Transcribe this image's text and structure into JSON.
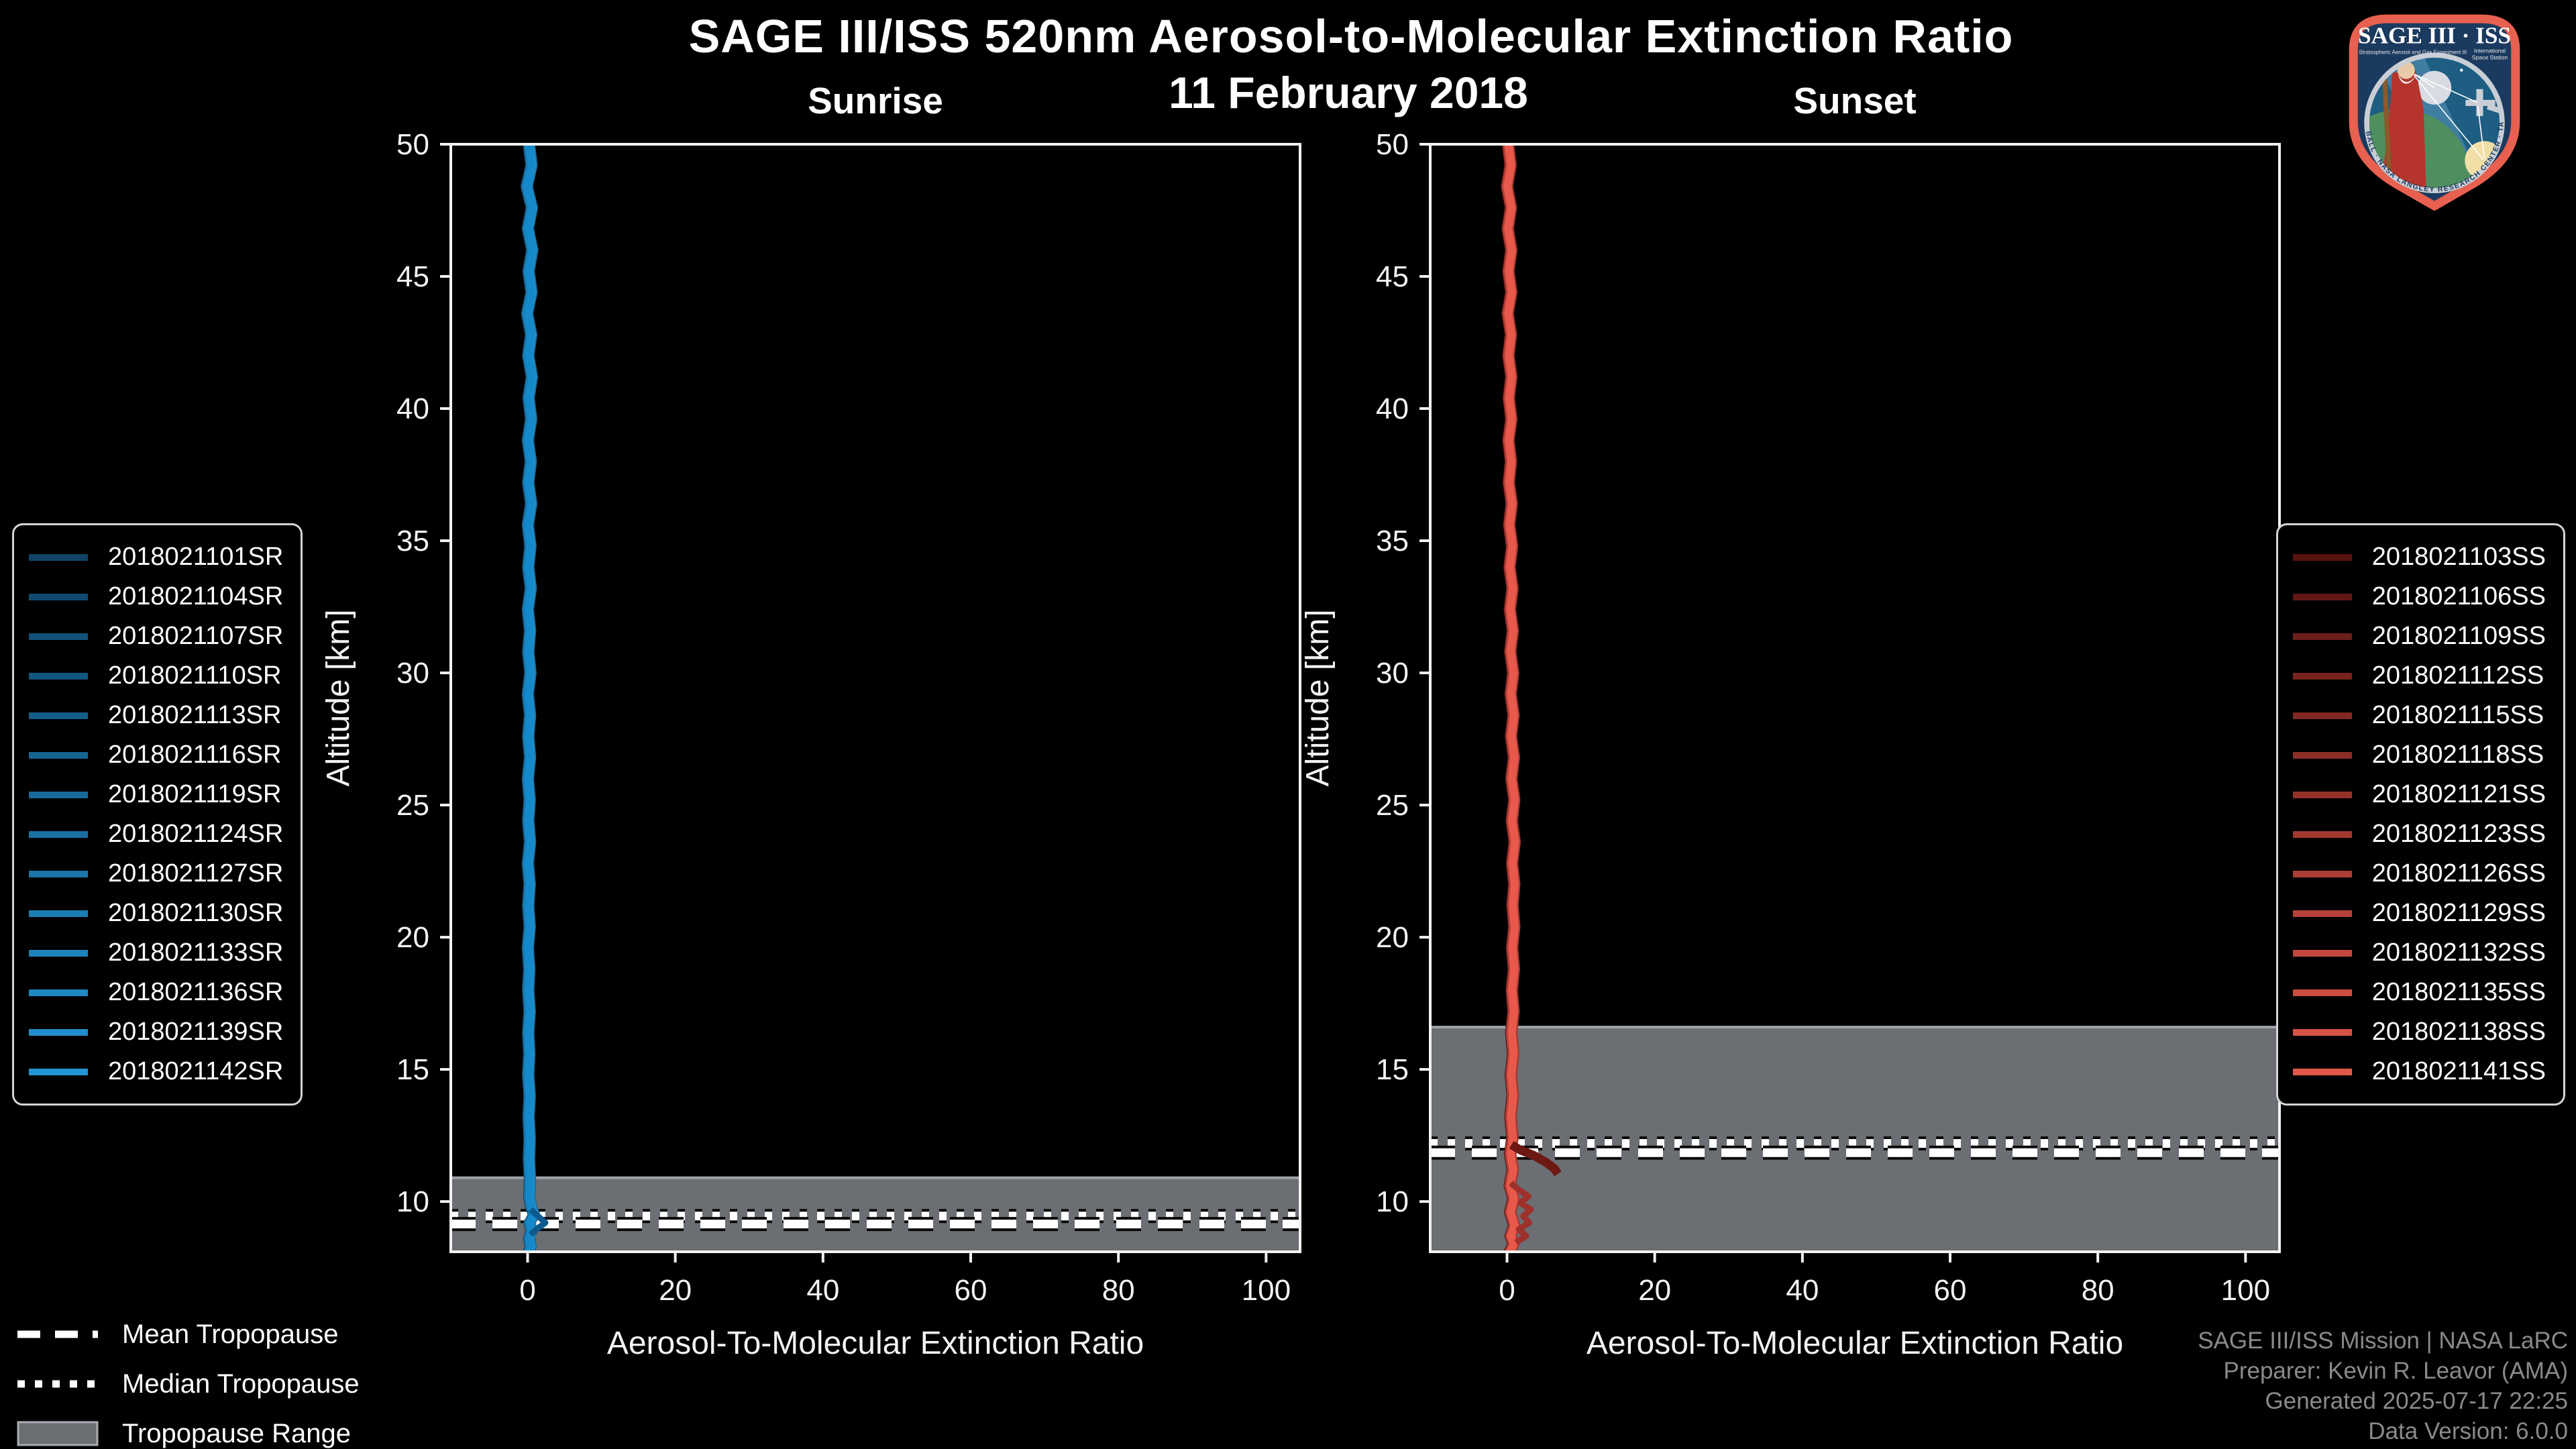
{
  "title": "SAGE III/ISS 520nm Aerosol-to-Molecular Extinction Ratio",
  "date": "11 February 2018",
  "colors": {
    "background": "#000000",
    "axis_text": "#F2F2F2",
    "band_fill": "#6B6E73",
    "band_edge": "#9FA3A8",
    "tropopause_line": "#FFFFFF",
    "legend_border": "#D4D4D4",
    "credits_text": "#8A8A8A"
  },
  "tropopause_legend": [
    {
      "label": "Mean Tropopause",
      "style": "dashed"
    },
    {
      "label": "Median Tropopause",
      "style": "dotted"
    },
    {
      "label": "Tropopause Range",
      "style": "box"
    }
  ],
  "credits": {
    "lines": [
      "SAGE III/ISS Mission | NASA LaRC",
      "Preparer: Kevin R. Leavor (AMA)",
      "Generated 2025-07-17 22:25",
      "Data Version: 6.0.0"
    ]
  },
  "logo": {
    "title": "SAGE III · ISS",
    "sub_left": "Stratospheric Aerosol and Gas Experiment III",
    "sub_right_1": "International",
    "sub_right_2": "Space Station",
    "ring": "BALL · NASA LANGLEY RESEARCH CENTER · TAS-I · ESA"
  },
  "chart_data": [
    {
      "type": "line",
      "panel": "Sunrise",
      "xlabel": "Aerosol-To-Molecular Extinction Ratio",
      "ylabel": "Altitude [km]",
      "xlim": [
        -10.4,
        104.6
      ],
      "ylim": [
        8.1,
        50
      ],
      "xticks": [
        0,
        20,
        40,
        60,
        80,
        100
      ],
      "yticks": [
        10,
        15,
        20,
        25,
        30,
        35,
        40,
        45,
        50
      ],
      "grid": false,
      "legend_position": "left",
      "tropopause": {
        "mean_km": 9.15,
        "median_km": 9.45,
        "range_top_km": 10.9,
        "range_bottom_km": 8.1
      },
      "front_color": "#1589CA",
      "front_width": 11,
      "series": [
        {
          "name": "2018021101SR",
          "color": "#0F4468"
        },
        {
          "name": "2018021104SR",
          "color": "#104A70"
        },
        {
          "name": "2018021107SR",
          "color": "#125178"
        },
        {
          "name": "2018021110SR",
          "color": "#135781"
        },
        {
          "name": "2018021113SR",
          "color": "#155D89"
        },
        {
          "name": "2018021116SR",
          "color": "#166491"
        },
        {
          "name": "2018021119SR",
          "color": "#176A99"
        },
        {
          "name": "2018021124SR",
          "color": "#1970A2"
        },
        {
          "name": "2018021127SR",
          "color": "#1A76AA"
        },
        {
          "name": "2018021130SR",
          "color": "#1B7DB2"
        },
        {
          "name": "2018021133SR",
          "color": "#1D83BA"
        },
        {
          "name": "2018021136SR",
          "color": "#1E89C3"
        },
        {
          "name": "2018021139SR",
          "color": "#208FCB"
        },
        {
          "name": "2018021142SR",
          "color": "#2196D3"
        }
      ],
      "offsets": [
        -0.55,
        -0.4,
        -0.25,
        -0.1,
        0.05,
        0.2,
        0.35,
        0.5,
        -0.45,
        -0.3,
        -0.15,
        0.0,
        0.15,
        0.3
      ],
      "profile": [
        [
          50,
          0.2
        ],
        [
          49.2,
          0.55
        ],
        [
          48.4,
          -0.1
        ],
        [
          47.6,
          0.6
        ],
        [
          46.8,
          0.05
        ],
        [
          46,
          0.65
        ],
        [
          45.2,
          0.15
        ],
        [
          44.4,
          0.55
        ],
        [
          43.6,
          -0.05
        ],
        [
          42.8,
          0.5
        ],
        [
          42,
          0.1
        ],
        [
          41.2,
          0.6
        ],
        [
          40.4,
          0.15
        ],
        [
          39.6,
          0.5
        ],
        [
          38.8,
          0.05
        ],
        [
          38,
          0.45
        ],
        [
          37.2,
          0.1
        ],
        [
          36.4,
          0.5
        ],
        [
          35.6,
          0.05
        ],
        [
          34.8,
          0.4
        ],
        [
          34,
          0.1
        ],
        [
          33.2,
          0.45
        ],
        [
          32.4,
          0.05
        ],
        [
          31.6,
          0.35
        ],
        [
          30.8,
          0.1
        ],
        [
          30,
          0.4
        ],
        [
          29.2,
          0.05
        ],
        [
          28.4,
          0.35
        ],
        [
          27.6,
          0.1
        ],
        [
          26.8,
          0.35
        ],
        [
          26,
          0.05
        ],
        [
          25.2,
          0.3
        ],
        [
          24.4,
          0.1
        ],
        [
          23.6,
          0.35
        ],
        [
          22.8,
          0.05
        ],
        [
          22,
          0.3
        ],
        [
          21.2,
          0.1
        ],
        [
          20.4,
          0.3
        ],
        [
          19.6,
          0.05
        ],
        [
          18.8,
          0.25
        ],
        [
          18,
          0.1
        ],
        [
          17.2,
          0.3
        ],
        [
          16.4,
          0.1
        ],
        [
          15.6,
          0.25
        ],
        [
          14.8,
          0.1
        ],
        [
          14,
          0.3
        ],
        [
          13.2,
          0.15
        ],
        [
          12.4,
          0.3
        ],
        [
          11.6,
          0.2
        ],
        [
          10.8,
          0.35
        ],
        [
          10.2,
          0.25
        ],
        [
          9.8,
          0.5
        ],
        [
          9.5,
          0.9
        ],
        [
          9.2,
          0.3
        ],
        [
          8.9,
          0.55
        ],
        [
          8.6,
          0.25
        ],
        [
          8.3,
          0.45
        ],
        [
          8.1,
          0.2
        ]
      ],
      "branches": [
        {
          "color": "#0E5A8C",
          "width": 9,
          "points": [
            [
              9.7,
              0.4
            ],
            [
              9.45,
              1.4
            ],
            [
              9.2,
              2.4
            ],
            [
              8.95,
              1.2
            ],
            [
              8.75,
              0.4
            ]
          ]
        }
      ]
    },
    {
      "type": "line",
      "panel": "Sunset",
      "xlabel": "Aerosol-To-Molecular Extinction Ratio",
      "ylabel": "Altitude [km]",
      "xlim": [
        -10.4,
        104.6
      ],
      "ylim": [
        8.1,
        50
      ],
      "xticks": [
        0,
        20,
        40,
        60,
        80,
        100
      ],
      "yticks": [
        10,
        15,
        20,
        25,
        30,
        35,
        40,
        45,
        50
      ],
      "grid": false,
      "legend_position": "right",
      "tropopause": {
        "mean_km": 11.85,
        "median_km": 12.2,
        "range_top_km": 16.6,
        "range_bottom_km": 8.1
      },
      "front_color": "#E8594C",
      "front_width": 11,
      "series": [
        {
          "name": "2018021103SS",
          "color": "#571310"
        },
        {
          "name": "2018021106SS",
          "color": "#621815"
        },
        {
          "name": "2018021109SS",
          "color": "#6C1E19"
        },
        {
          "name": "2018021112SS",
          "color": "#77231E"
        },
        {
          "name": "2018021115SS",
          "color": "#822822"
        },
        {
          "name": "2018021118SS",
          "color": "#8D2D27"
        },
        {
          "name": "2018021121SS",
          "color": "#97322B"
        },
        {
          "name": "2018021123SS",
          "color": "#A23830"
        },
        {
          "name": "2018021126SS",
          "color": "#AD3D34"
        },
        {
          "name": "2018021129SS",
          "color": "#B74239"
        },
        {
          "name": "2018021132SS",
          "color": "#C2473E"
        },
        {
          "name": "2018021135SS",
          "color": "#CD4D42"
        },
        {
          "name": "2018021138SS",
          "color": "#D75247"
        },
        {
          "name": "2018021141SS",
          "color": "#E2574B"
        }
      ],
      "offsets": [
        -0.55,
        -0.4,
        -0.25,
        -0.1,
        0.05,
        0.2,
        0.35,
        0.5,
        -0.45,
        -0.3,
        -0.15,
        0.0,
        0.15,
        0.3
      ],
      "profile": [
        [
          50,
          0.15
        ],
        [
          49.2,
          0.5
        ],
        [
          48.4,
          0.0
        ],
        [
          47.6,
          0.55
        ],
        [
          46.8,
          0.1
        ],
        [
          46,
          0.6
        ],
        [
          45.2,
          0.2
        ],
        [
          44.4,
          0.6
        ],
        [
          43.6,
          0.1
        ],
        [
          42.8,
          0.55
        ],
        [
          42,
          0.2
        ],
        [
          41.2,
          0.6
        ],
        [
          40.4,
          0.25
        ],
        [
          39.6,
          0.6
        ],
        [
          38.8,
          0.2
        ],
        [
          38,
          0.55
        ],
        [
          37.2,
          0.25
        ],
        [
          36.4,
          0.65
        ],
        [
          35.6,
          0.3
        ],
        [
          34.8,
          0.7
        ],
        [
          34,
          0.35
        ],
        [
          33.2,
          0.75
        ],
        [
          32.4,
          0.4
        ],
        [
          31.6,
          0.8
        ],
        [
          30.8,
          0.45
        ],
        [
          30,
          0.85
        ],
        [
          29.2,
          0.5
        ],
        [
          28.4,
          0.9
        ],
        [
          27.6,
          0.55
        ],
        [
          26.8,
          0.95
        ],
        [
          26,
          0.6
        ],
        [
          25.2,
          1.0
        ],
        [
          24.4,
          0.65
        ],
        [
          23.6,
          1.05
        ],
        [
          22.8,
          0.7
        ],
        [
          22,
          1.0
        ],
        [
          21.2,
          0.75
        ],
        [
          20.4,
          1.0
        ],
        [
          19.6,
          0.7
        ],
        [
          18.8,
          0.95
        ],
        [
          18,
          0.65
        ],
        [
          17.2,
          0.9
        ],
        [
          16.4,
          0.6
        ],
        [
          15.6,
          0.85
        ],
        [
          14.8,
          0.55
        ],
        [
          14,
          0.8
        ],
        [
          13.2,
          0.5
        ],
        [
          12.4,
          0.75
        ],
        [
          11.8,
          0.45
        ],
        [
          11.2,
          0.8
        ],
        [
          10.6,
          0.4
        ],
        [
          10.1,
          0.9
        ],
        [
          9.6,
          0.45
        ],
        [
          9.1,
          1.0
        ],
        [
          8.7,
          0.5
        ],
        [
          8.4,
          0.9
        ],
        [
          8.1,
          0.4
        ]
      ],
      "branches": [
        {
          "color": "#6E1813",
          "width": 13,
          "points": [
            [
              12.15,
              0.6
            ],
            [
              11.95,
              1.8
            ],
            [
              11.75,
              3.6
            ],
            [
              11.5,
              5.2
            ],
            [
              11.25,
              6.4
            ],
            [
              11.05,
              6.9
            ]
          ]
        },
        {
          "color": "#9E312B",
          "width": 9,
          "points": [
            [
              10.7,
              0.5
            ],
            [
              10.45,
              1.6
            ],
            [
              10.2,
              2.9
            ],
            [
              9.95,
              1.8
            ],
            [
              9.7,
              3.2
            ],
            [
              9.45,
              2.2
            ],
            [
              9.2,
              3.0
            ],
            [
              8.95,
              1.6
            ],
            [
              8.7,
              2.6
            ],
            [
              8.45,
              1.2
            ]
          ]
        }
      ]
    }
  ]
}
